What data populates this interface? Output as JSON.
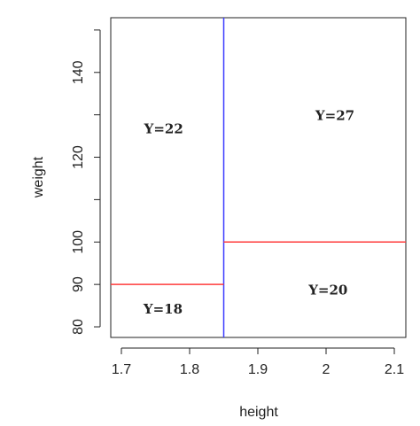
{
  "chart_data": {
    "type": "partition",
    "xlabel": "height",
    "ylabel": "weight",
    "xlim": [
      1.6844,
      2.1169
    ],
    "ylim": [
      77.5,
      152.9
    ],
    "xticks": [
      1.7,
      1.8,
      1.9,
      2.0,
      2.1
    ],
    "yticks": [
      80,
      90,
      100,
      120,
      140
    ],
    "y_minor_ticks": [
      110,
      130,
      150
    ],
    "segments": [
      {
        "x": [
          1.85,
          1.85
        ],
        "y": [
          77.5,
          152.9
        ],
        "color": "#3b3bff"
      },
      {
        "x": [
          1.6844,
          1.85
        ],
        "y": [
          90,
          90
        ],
        "color": "#ff3b3b"
      },
      {
        "x": [
          1.85,
          2.1169
        ],
        "y": [
          100,
          100
        ],
        "color": "#ff3b3b"
      }
    ],
    "annotations": [
      {
        "text": "Y=22",
        "x": 1.762,
        "y": 126.5
      },
      {
        "text": "Y=27",
        "x": 2.013,
        "y": 129.6
      },
      {
        "text": "Y=18",
        "x": 1.761,
        "y": 84
      },
      {
        "text": "Y=20",
        "x": 2.003,
        "y": 88.5
      }
    ]
  }
}
